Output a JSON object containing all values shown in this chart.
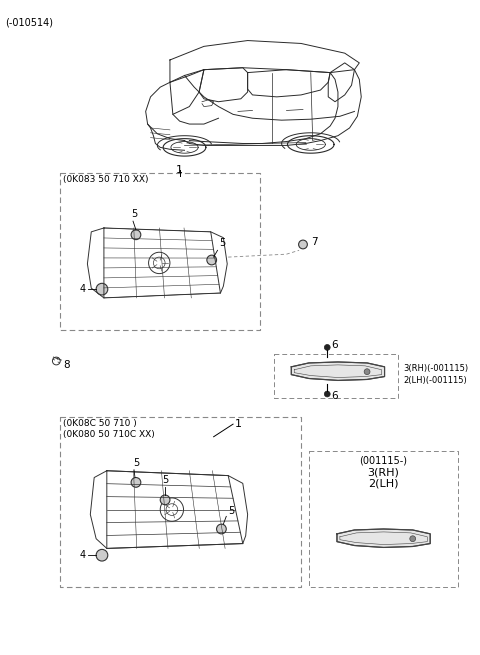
{
  "bg_color": "#ffffff",
  "title_label": "(-010514)",
  "font_color": "#000000",
  "dashed_color": "#888888",
  "line_color": "#000000",
  "fig_width": 4.8,
  "fig_height": 6.55,
  "dpi": 100,
  "top_box_label": "(0K083 50 710 XX)",
  "bot_box_label1": "(0K08C 50 710 )",
  "bot_box_label2": "(0K080 50 710C XX)",
  "bot_right_box_label": "(001115-)",
  "right_upper_label1": "3(RH)(-001115)",
  "right_upper_label2": "2(LH)(-001115)",
  "bot_right_label1": "3(RH)",
  "bot_right_label2": "2(LH)"
}
